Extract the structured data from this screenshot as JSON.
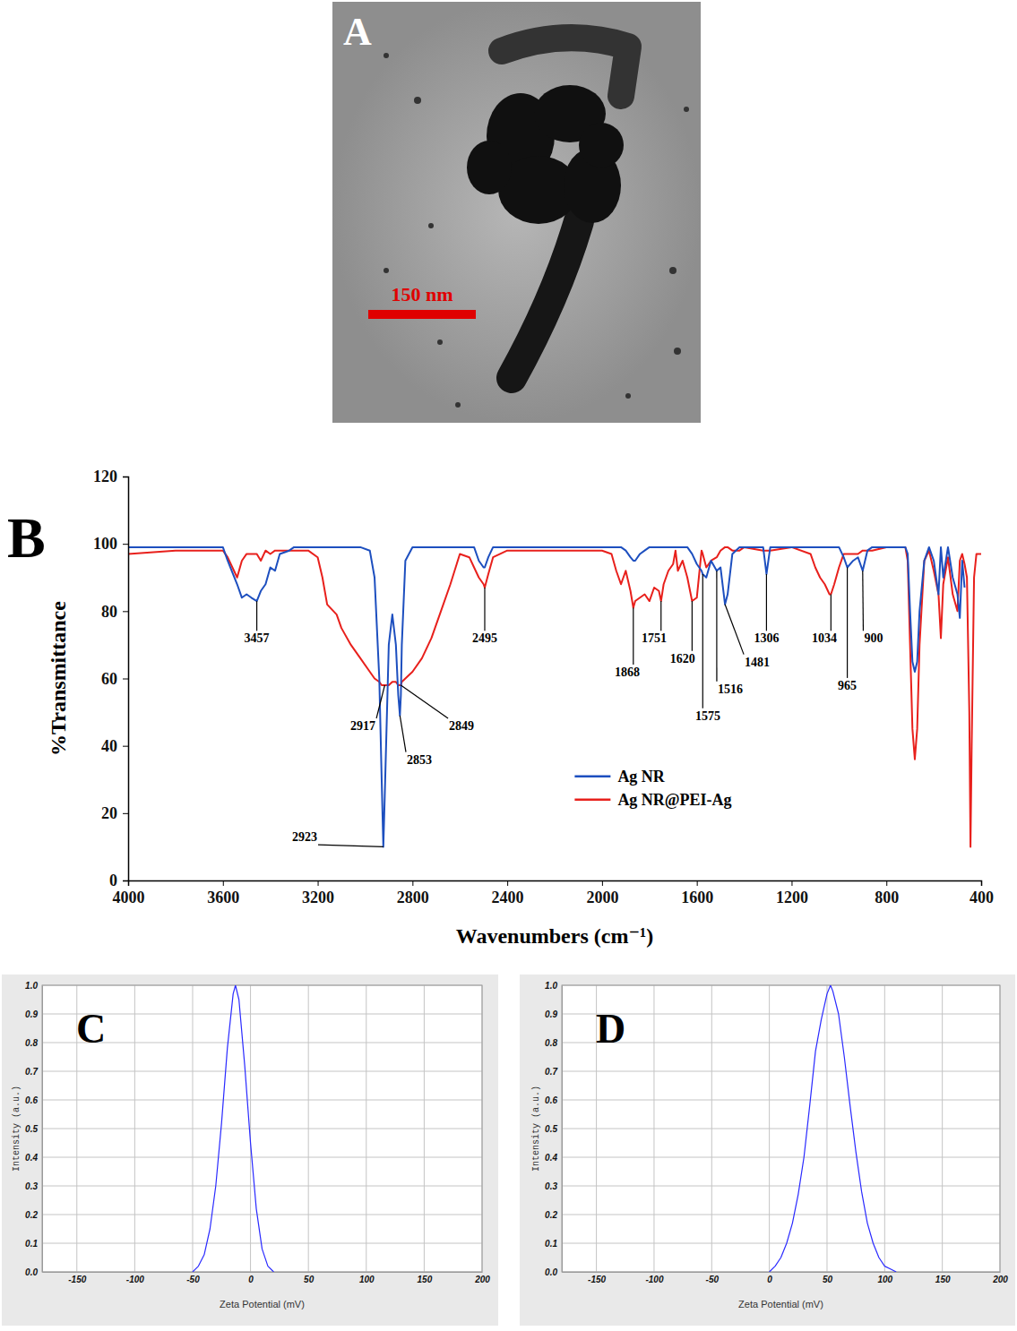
{
  "chart_data": [
    {
      "type": "image",
      "panel_label": "A",
      "scale_bar": {
        "length": 150,
        "label": "150 nm"
      }
    },
    {
      "type": "line",
      "panel_label": "B",
      "xlabel": "Wavenumbers (cm⁻¹)",
      "ylabel": "%Transmittance",
      "x": [
        4000,
        3800,
        3600,
        3580,
        3540,
        3520,
        3500,
        3480,
        3457,
        3440,
        3420,
        3400,
        3380,
        3360,
        3320,
        3300,
        3240,
        3200,
        3180,
        3160,
        3120,
        3100,
        3060,
        3020,
        2980,
        2960,
        2940,
        2930,
        2923,
        2917,
        2900,
        2885,
        2870,
        2860,
        2853,
        2849,
        2845,
        2830,
        2800,
        2760,
        2720,
        2680,
        2640,
        2600,
        2560,
        2540,
        2520,
        2500,
        2495,
        2480,
        2460,
        2400,
        2000,
        1960,
        1940,
        1920,
        1900,
        1880,
        1868,
        1860,
        1840,
        1820,
        1800,
        1780,
        1760,
        1751,
        1740,
        1720,
        1700,
        1690,
        1680,
        1660,
        1640,
        1620,
        1600,
        1580,
        1575,
        1560,
        1540,
        1516,
        1500,
        1481,
        1470,
        1450,
        1420,
        1400,
        1320,
        1306,
        1290,
        1200,
        1120,
        1100,
        1080,
        1060,
        1040,
        1034,
        1020,
        1000,
        980,
        965,
        940,
        920,
        900,
        880,
        860,
        800,
        720,
        710,
        700,
        690,
        680,
        670,
        660,
        640,
        620,
        600,
        580,
        570,
        560,
        540,
        520,
        500,
        490,
        480,
        470,
        460,
        450,
        445,
        440,
        430,
        420,
        400
      ],
      "series": [
        {
          "name": "Ag NR",
          "color": "#1d4fbf",
          "values": [
            99,
            99,
            99,
            95,
            88,
            84,
            85,
            84,
            83,
            86,
            88,
            93,
            92,
            97,
            98,
            99,
            99,
            99,
            99,
            99,
            99,
            99,
            99,
            99,
            98,
            90,
            60,
            30,
            10,
            25,
            70,
            79,
            70,
            55,
            49,
            55,
            70,
            95,
            99,
            99,
            99,
            99,
            99,
            99,
            99,
            99,
            95,
            93,
            93,
            96,
            99,
            99,
            99,
            99,
            99,
            99,
            98,
            96,
            95,
            95,
            97,
            98,
            99,
            99,
            99,
            99,
            99,
            99,
            99,
            99,
            99,
            99,
            99,
            97,
            94,
            92,
            91,
            90,
            95,
            92,
            93,
            82,
            85,
            97,
            99,
            99,
            99,
            91,
            99,
            99,
            99,
            99,
            99,
            99,
            99,
            99,
            99,
            99,
            96,
            93,
            95,
            96,
            92,
            98,
            99,
            99,
            99,
            97,
            80,
            65,
            62,
            65,
            80,
            95,
            99,
            95,
            85,
            99,
            90,
            99,
            90,
            85,
            78,
            95,
            87,
            null,
            null,
            null,
            null,
            null,
            null,
            null
          ]
        },
        {
          "name": "Ag NR@PEI-Ag",
          "color": "#e8201c",
          "values": [
            97,
            98,
            98,
            96,
            90,
            95,
            97,
            97,
            97,
            95,
            98,
            97,
            98,
            98,
            98,
            98,
            98,
            96,
            90,
            82,
            79,
            75,
            70,
            66,
            62,
            60,
            59,
            58,
            58,
            58,
            58,
            59,
            59,
            58,
            58,
            58,
            59,
            60,
            62,
            66,
            72,
            80,
            88,
            97,
            96,
            93,
            90,
            88,
            87,
            91,
            96,
            98,
            98,
            97,
            92,
            88,
            92,
            86,
            81,
            83,
            84,
            85,
            83,
            87,
            86,
            83,
            88,
            92,
            94,
            98,
            92,
            95,
            90,
            83,
            84,
            98,
            97,
            93,
            95,
            96,
            98,
            99,
            99,
            98,
            98,
            99,
            98,
            98,
            98,
            99,
            97,
            93,
            90,
            88,
            85,
            85,
            88,
            93,
            97,
            97,
            97,
            97,
            98,
            98,
            98,
            99,
            99,
            95,
            70,
            45,
            36,
            45,
            70,
            95,
            98,
            92,
            85,
            72,
            88,
            96,
            85,
            80,
            95,
            97,
            94,
            90,
            50,
            10,
            40,
            90,
            97,
            97
          ]
        }
      ],
      "xlim": [
        4000,
        400
      ],
      "ylim": [
        0,
        120
      ],
      "xticks": [
        4000,
        3600,
        3200,
        2800,
        2400,
        2000,
        1600,
        1200,
        800,
        400
      ],
      "yticks": [
        0,
        20,
        40,
        60,
        80,
        100,
        120
      ],
      "grid": false,
      "legend": "lower center",
      "annotations": [
        {
          "text": "3457",
          "x": 3457,
          "y": 83,
          "text_x": 3457,
          "text_y": 72
        },
        {
          "text": "2923",
          "x": 2923,
          "y": 10,
          "text_x": 3255,
          "text_y": 13
        },
        {
          "text": "2917",
          "x": 2917,
          "y": 58,
          "text_x": 3009,
          "text_y": 46
        },
        {
          "text": "2853",
          "x": 2853,
          "y": 49,
          "text_x": 2771,
          "text_y": 36
        },
        {
          "text": "2849",
          "x": 2849,
          "y": 58,
          "text_x": 2593,
          "text_y": 46
        },
        {
          "text": "2495",
          "x": 2495,
          "y": 87,
          "text_x": 2495,
          "text_y": 72
        },
        {
          "text": "1868",
          "x": 1868,
          "y": 81,
          "text_x": 1894,
          "text_y": 62
        },
        {
          "text": "1751",
          "x": 1751,
          "y": 83,
          "text_x": 1780,
          "text_y": 72
        },
        {
          "text": "1620",
          "x": 1620,
          "y": 83,
          "text_x": 1660,
          "text_y": 66
        },
        {
          "text": "1575",
          "x": 1575,
          "y": 91,
          "text_x": 1553,
          "text_y": 49
        },
        {
          "text": "1516",
          "x": 1516,
          "y": 92,
          "text_x": 1459,
          "text_y": 57
        },
        {
          "text": "1481",
          "x": 1481,
          "y": 82,
          "text_x": 1345,
          "text_y": 65
        },
        {
          "text": "1306",
          "x": 1306,
          "y": 91,
          "text_x": 1306,
          "text_y": 72
        },
        {
          "text": "1034",
          "x": 1034,
          "y": 85,
          "text_x": 1062,
          "text_y": 72
        },
        {
          "text": "965",
          "x": 965,
          "y": 93,
          "text_x": 965,
          "text_y": 58
        },
        {
          "text": "900",
          "x": 900,
          "y": 92,
          "text_x": 854,
          "text_y": 72
        }
      ]
    },
    {
      "type": "line",
      "panel_label": "C",
      "xlabel": "Zeta Potential (mV)",
      "ylabel": "Intensity (a.u.)",
      "x": [
        -50,
        -45,
        -40,
        -35,
        -30,
        -25,
        -20,
        -15,
        -13,
        -10,
        -5,
        0,
        5,
        10,
        15,
        20
      ],
      "values": [
        0,
        0.02,
        0.06,
        0.15,
        0.3,
        0.52,
        0.78,
        0.97,
        1.0,
        0.95,
        0.72,
        0.45,
        0.22,
        0.08,
        0.02,
        0
      ],
      "color": "#2a2aff",
      "xlim": [
        -180,
        200
      ],
      "ylim": [
        0,
        1
      ],
      "xticks": [
        -150,
        -100,
        -50,
        0,
        50,
        100,
        150,
        200
      ],
      "yticks": [
        {
          "value": 0,
          "label": "0.0"
        },
        0.1,
        0.2,
        0.3,
        0.4,
        0.5,
        0.6,
        0.7,
        0.8,
        0.9,
        {
          "value": 1,
          "label": "1.0"
        }
      ],
      "grid": true
    },
    {
      "type": "line",
      "panel_label": "D",
      "xlabel": "Zeta Potential (mV)",
      "ylabel": "Intensity (a.u.)",
      "x": [
        0,
        5,
        10,
        15,
        20,
        25,
        30,
        35,
        40,
        45,
        50,
        53,
        55,
        60,
        65,
        70,
        75,
        80,
        85,
        90,
        95,
        100,
        105,
        110
      ],
      "values": [
        0,
        0.02,
        0.05,
        0.1,
        0.17,
        0.27,
        0.4,
        0.58,
        0.77,
        0.88,
        0.97,
        1.0,
        0.98,
        0.9,
        0.75,
        0.58,
        0.42,
        0.28,
        0.17,
        0.1,
        0.05,
        0.02,
        0.01,
        0
      ],
      "color": "#2a2aff",
      "xlim": [
        -180,
        200
      ],
      "ylim": [
        0,
        1
      ],
      "xticks": [
        -150,
        -100,
        -50,
        0,
        50,
        100,
        150,
        200
      ],
      "yticks": [
        {
          "value": 0,
          "label": "0.0"
        },
        0.1,
        0.2,
        0.3,
        0.4,
        0.5,
        0.6,
        0.7,
        0.8,
        0.9,
        {
          "value": 1,
          "label": "1.0"
        }
      ],
      "grid": true
    }
  ]
}
